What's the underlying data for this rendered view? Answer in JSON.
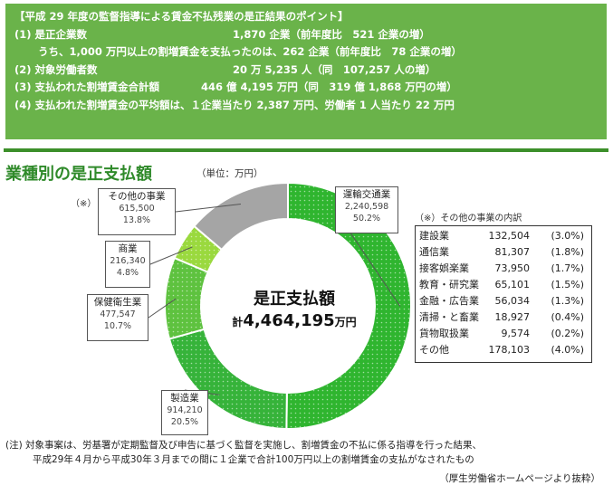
{
  "summary": {
    "heading": "【平成 29 年度の監督指導による賃金不払残業の是正結果のポイント】",
    "lines": [
      "(1)  是正企業数　　　　　　　　　　　　　　1,870 企業（前年度比　521 企業の増）",
      "うち、1,000 万円以上の割増賃金を支払ったのは、262 企業（前年度比　78 企業の増）",
      "(2)  対象労働者数　　　　　　　　　　　　　20 万 5,235 人（同　107,257 人の増）",
      "(3)  支払われた割増賃金合計額　　　　446 億 4,195 万円（同　319 億 1,868 万円の増）",
      "(4)  支払われた割増賃金の平均額は、１企業当たり 2,387 万円、労働者 1 人当たり 22 万円"
    ]
  },
  "chart_title": "業種別の是正支払額",
  "unit_label": "（単位：万円）",
  "center": {
    "title": "是正支払額",
    "prefix": "計",
    "total": "4,464,195",
    "suffix": "万円"
  },
  "note_mark": "（※）",
  "colors": {
    "transport": "#2fb52f",
    "manufacturing": "#36b33a",
    "health": "#5ec23f",
    "commerce": "#9ad93e",
    "other": "#a5a5a5",
    "header_bg": "#6ab34a"
  },
  "chart_data": {
    "type": "pie",
    "unit": "万円",
    "slices": [
      {
        "label": "運輸交通業",
        "value": 2240598,
        "value_text": "2,240,598",
        "pct": "50.2%"
      },
      {
        "label": "製造業",
        "value": 914210,
        "value_text": "914,210",
        "pct": "20.5%"
      },
      {
        "label": "保健衛生業",
        "value": 477547,
        "value_text": "477,547",
        "pct": "10.7%"
      },
      {
        "label": "商業",
        "value": 216340,
        "value_text": "216,340",
        "pct": "4.8%"
      },
      {
        "label": "その他の事業",
        "value": 615500,
        "value_text": "615,500",
        "pct": "13.8%"
      }
    ]
  },
  "breakdown": {
    "title": "（※）その他の事業の内訳",
    "rows": [
      {
        "name": "建設業",
        "value": "132,504",
        "pct": "(3.0%)"
      },
      {
        "name": "通信業",
        "value": "81,307",
        "pct": "(1.8%)"
      },
      {
        "name": "接客娯楽業",
        "value": "73,950",
        "pct": "(1.7%)"
      },
      {
        "name": "教育・研究業",
        "value": "65,101",
        "pct": "(1.5%)"
      },
      {
        "name": "金融・広告業",
        "value": "56,034",
        "pct": "(1.3%)"
      },
      {
        "name": "清掃・と畜業",
        "value": "18,927",
        "pct": "(0.4%)"
      },
      {
        "name": "貨物取扱業",
        "value": "9,574",
        "pct": "(0.2%)"
      },
      {
        "name": "その他",
        "value": "178,103",
        "pct": "(4.0%)"
      }
    ]
  },
  "footnote": [
    "(注)  対象事案は、労基署が定期監督及び申告に基づく監督を実施し、割増賃金の不払に係る指導を行った結果、",
    "平成29年４月から平成30年３月までの間に１企業で合計100万円以上の割増賃金の支払がなされたもの"
  ],
  "source": "（厚生労働省ホームページより抜粋）"
}
